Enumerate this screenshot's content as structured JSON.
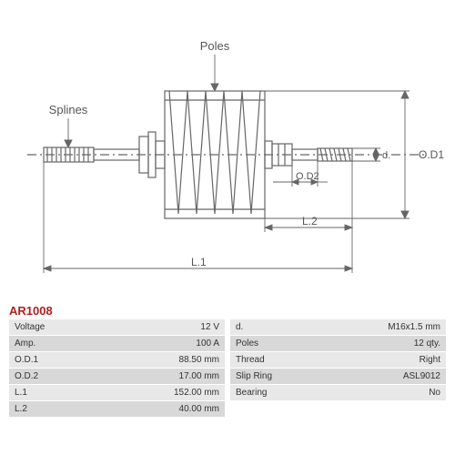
{
  "diagram": {
    "labels": {
      "poles": "Poles",
      "splines": "Splines",
      "od1": "O.D1",
      "od2": "O.D2",
      "l1": "L.1",
      "l2": "L.2",
      "d": "d."
    },
    "colors": {
      "line": "#666666",
      "text": "#555555",
      "bg": "#ffffff"
    },
    "font_size": 12
  },
  "part_number": "AR1008",
  "part_number_color": "#b02020",
  "spec_left": [
    {
      "label": "Voltage",
      "value": "12 V"
    },
    {
      "label": "Amp.",
      "value": "100 A"
    },
    {
      "label": "O.D.1",
      "value": "88.50 mm"
    },
    {
      "label": "O.D.2",
      "value": "17.00 mm"
    },
    {
      "label": "L.1",
      "value": "152.00 mm"
    },
    {
      "label": "L.2",
      "value": "40.00 mm"
    }
  ],
  "spec_right": [
    {
      "label": "d.",
      "value": "M16x1.5 mm"
    },
    {
      "label": "Poles",
      "value": "12 qty."
    },
    {
      "label": "Thread",
      "value": "Right"
    },
    {
      "label": "Slip Ring",
      "value": "ASL9012"
    },
    {
      "label": "Bearing",
      "value": "No"
    }
  ],
  "table_colors": {
    "row_odd": "#e8e8e8",
    "row_even": "#d8d8d8"
  }
}
